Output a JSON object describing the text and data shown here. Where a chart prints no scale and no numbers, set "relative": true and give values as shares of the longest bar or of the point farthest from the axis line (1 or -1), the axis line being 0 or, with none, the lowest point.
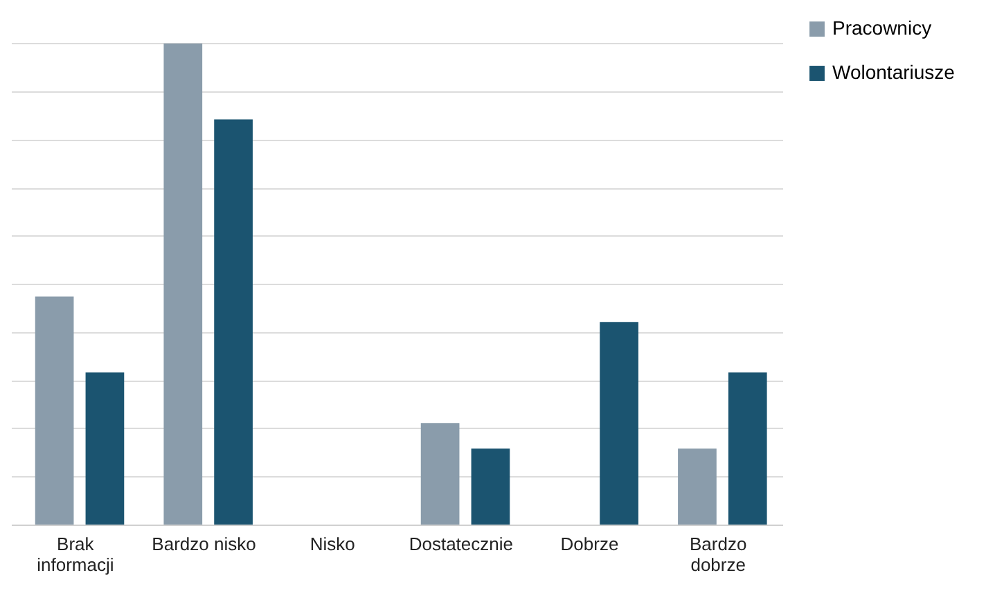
{
  "chart_data": {
    "type": "bar",
    "relative": true,
    "grid": "y",
    "legend": "right",
    "categories": [
      "Brak informacji",
      "Bardzo nisko",
      "Nisko",
      "Dostatecznie",
      "Dobrze",
      "Bardzo dobrze"
    ],
    "series": [
      {
        "name": "Pracownicy",
        "color": "#8a9cab",
        "values": [
          0.474,
          1,
          0,
          0.211,
          0,
          0.158
        ]
      },
      {
        "name": "Wolontariusze",
        "color": "#1b5470",
        "values": [
          0.316,
          0.842,
          0,
          0.158,
          0.421,
          0.316
        ]
      }
    ]
  }
}
